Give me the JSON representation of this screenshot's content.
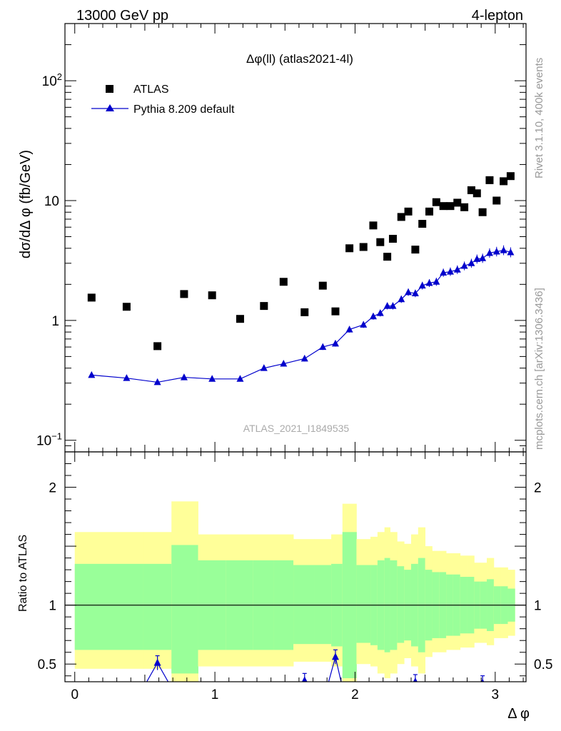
{
  "header": {
    "left": "13000 GeV pp",
    "right": "4-lepton"
  },
  "side_labels": {
    "rivet": "Rivet 3.1.10,  400k events",
    "mcplots": "mcplots.cern.ch [arXiv:1306.3436]"
  },
  "watermark": "ATLAS_2021_I1849535",
  "colors": {
    "data": "#000000",
    "mc": "#0000cc",
    "band_inner": "#99ff99",
    "band_outer": "#ffff99"
  },
  "chart_data": [
    {
      "type": "scatter",
      "title": "Δφ(ll) (atlas2021-4l)",
      "ylabel": "dσ/dΔ φ (fb/GeV)",
      "xlabel": "",
      "yscale": "log",
      "ylim": [
        0.08,
        300
      ],
      "xlim": [
        -0.07,
        3.22
      ],
      "yticks": [
        {
          "v": 0.1,
          "base": "10",
          "exp": "−1"
        },
        {
          "v": 1,
          "base": "1",
          "exp": ""
        },
        {
          "v": 10,
          "base": "10",
          "exp": ""
        },
        {
          "v": 100,
          "base": "10",
          "exp": "2"
        }
      ],
      "legend": {
        "position": "top-left",
        "entries": [
          "ATLAS",
          "Pythia 8.209 default"
        ]
      },
      "series": [
        {
          "name": "ATLAS",
          "marker": "square",
          "x": [
            0.12,
            0.37,
            0.59,
            0.78,
            0.98,
            1.18,
            1.35,
            1.49,
            1.64,
            1.77,
            1.86,
            1.96,
            2.06,
            2.13,
            2.18,
            2.23,
            2.27,
            2.33,
            2.38,
            2.43,
            2.48,
            2.53,
            2.58,
            2.63,
            2.68,
            2.73,
            2.78,
            2.83,
            2.87,
            2.91,
            2.96,
            3.01,
            3.06,
            3.11
          ],
          "y": [
            1.55,
            1.3,
            0.61,
            1.66,
            1.62,
            1.03,
            1.32,
            2.1,
            1.17,
            1.95,
            1.19,
            4.0,
            4.1,
            6.2,
            4.5,
            3.4,
            4.8,
            7.3,
            8.1,
            3.9,
            6.4,
            8.1,
            9.7,
            9.0,
            9.0,
            9.6,
            8.8,
            12.2,
            11.5,
            8.0,
            14.8,
            10.0,
            14.5,
            16.0
          ]
        },
        {
          "name": "Pythia 8.209 default",
          "marker": "triangle",
          "x": [
            0.12,
            0.37,
            0.59,
            0.78,
            0.98,
            1.18,
            1.35,
            1.49,
            1.64,
            1.77,
            1.86,
            1.96,
            2.06,
            2.13,
            2.18,
            2.23,
            2.27,
            2.33,
            2.38,
            2.43,
            2.48,
            2.53,
            2.58,
            2.63,
            2.68,
            2.73,
            2.78,
            2.83,
            2.87,
            2.91,
            2.96,
            3.01,
            3.06,
            3.11
          ],
          "y": [
            0.35,
            0.33,
            0.305,
            0.335,
            0.325,
            0.325,
            0.4,
            0.435,
            0.48,
            0.6,
            0.64,
            0.84,
            0.92,
            1.08,
            1.15,
            1.32,
            1.32,
            1.5,
            1.72,
            1.68,
            1.95,
            2.05,
            2.1,
            2.5,
            2.55,
            2.65,
            2.85,
            3.0,
            3.25,
            3.3,
            3.65,
            3.75,
            3.85,
            3.7
          ]
        }
      ]
    },
    {
      "type": "area",
      "ylabel": "Ratio to ATLAS",
      "xlabel": "Δ φ",
      "ylim": [
        0.35,
        2.3
      ],
      "xlim": [
        -0.07,
        3.22
      ],
      "xticks": [
        0,
        1,
        2,
        3
      ],
      "yticks": [
        0.5,
        1,
        2
      ],
      "reference_line": 1,
      "bands": {
        "edges": [
          0.0,
          0.49,
          0.69,
          0.88,
          1.08,
          1.27,
          1.42,
          1.56,
          1.71,
          1.83,
          1.91,
          2.01,
          2.11,
          2.16,
          2.21,
          2.25,
          2.3,
          2.35,
          2.4,
          2.45,
          2.5,
          2.55,
          2.6,
          2.65,
          2.7,
          2.75,
          2.8,
          2.85,
          2.89,
          2.94,
          2.99,
          3.04,
          3.09,
          3.14
        ],
        "inner_lo": [
          0.62,
          0.62,
          0.42,
          0.62,
          0.62,
          0.62,
          0.62,
          0.67,
          0.67,
          0.65,
          0.38,
          0.68,
          0.66,
          0.62,
          0.6,
          0.62,
          0.68,
          0.7,
          0.65,
          0.6,
          0.7,
          0.72,
          0.72,
          0.74,
          0.74,
          0.76,
          0.76,
          0.8,
          0.8,
          0.78,
          0.84,
          0.84,
          0.86
        ],
        "inner_hi": [
          1.35,
          1.35,
          1.51,
          1.38,
          1.38,
          1.38,
          1.38,
          1.34,
          1.34,
          1.35,
          1.62,
          1.34,
          1.34,
          1.38,
          1.4,
          1.38,
          1.33,
          1.3,
          1.35,
          1.4,
          1.3,
          1.28,
          1.28,
          1.26,
          1.26,
          1.24,
          1.24,
          1.2,
          1.2,
          1.22,
          1.16,
          1.16,
          1.14
        ],
        "outer_lo": [
          0.46,
          0.46,
          0.24,
          0.48,
          0.48,
          0.48,
          0.48,
          0.52,
          0.52,
          0.48,
          0.24,
          0.5,
          0.48,
          0.42,
          0.38,
          0.42,
          0.5,
          0.55,
          0.48,
          0.42,
          0.56,
          0.6,
          0.6,
          0.62,
          0.62,
          0.64,
          0.64,
          0.68,
          0.68,
          0.66,
          0.72,
          0.72,
          0.74
        ],
        "outer_hi": [
          1.62,
          1.62,
          1.88,
          1.6,
          1.6,
          1.6,
          1.6,
          1.56,
          1.56,
          1.6,
          1.86,
          1.56,
          1.58,
          1.62,
          1.66,
          1.62,
          1.54,
          1.52,
          1.6,
          1.66,
          1.5,
          1.46,
          1.46,
          1.44,
          1.44,
          1.42,
          1.42,
          1.36,
          1.36,
          1.4,
          1.32,
          1.32,
          1.3
        ]
      },
      "series": [
        {
          "name": "Pythia 8.209 default",
          "x": [
            0.49,
            0.59,
            0.69,
            1.6,
            1.64,
            1.68,
            1.8,
            1.86,
            1.91,
            2.38,
            2.43,
            2.48,
            2.88,
            2.91,
            2.94
          ],
          "y": [
            0.3,
            0.51,
            0.3,
            0.3,
            0.36,
            0.3,
            0.3,
            0.56,
            0.3,
            0.3,
            0.35,
            0.3,
            0.3,
            0.34,
            0.3
          ],
          "markers": [
            0.59,
            1.64,
            1.86,
            2.43,
            2.91
          ]
        }
      ]
    }
  ]
}
